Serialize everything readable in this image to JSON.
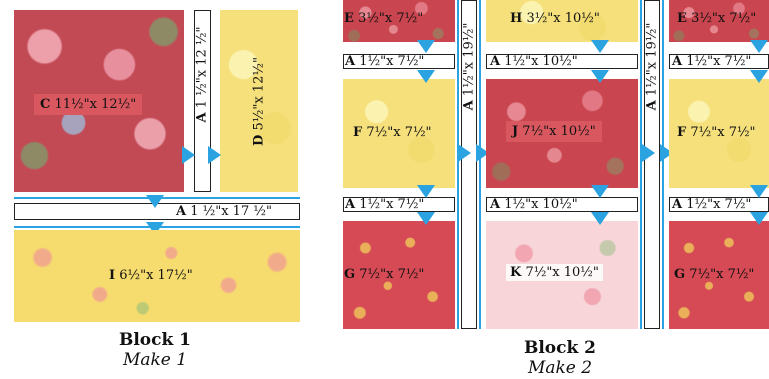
{
  "block1": {
    "title": "Block 1",
    "subtitle": "Make 1",
    "pieces": {
      "C": {
        "letter": "C",
        "size": "11½\"x 12½\""
      },
      "A_vertical": {
        "letter": "A",
        "size": "1 ½\"x 12 ½\""
      },
      "D": {
        "letter": "D",
        "size": "5½\"x 12½\""
      },
      "A_horizontal": {
        "letter": "A",
        "size": "1 ½\"x 17 ½\""
      },
      "I": {
        "letter": "I",
        "size": "6½\"x 17½\""
      }
    }
  },
  "block2": {
    "title": "Block 2",
    "subtitle": "Make 2",
    "pieces": {
      "E": {
        "letter": "E",
        "size": "3½\"x 7½\""
      },
      "A_small": {
        "letter": "A",
        "size": "1½\"x 7½\""
      },
      "F": {
        "letter": "F",
        "size": "7½\"x 7½\""
      },
      "G": {
        "letter": "G",
        "size": "7½\"x 7½\""
      },
      "H": {
        "letter": "H",
        "size": "3½\"x 10½\""
      },
      "A_medium": {
        "letter": "A",
        "size": "1½\"x 10½\""
      },
      "J": {
        "letter": "J",
        "size": "7½\"x 10½\""
      },
      "K": {
        "letter": "K",
        "size": "7½\"x 10½\""
      },
      "A_long": {
        "letter": "A",
        "size": "1½\"x 19½\""
      }
    }
  },
  "colors": {
    "arrow": "#2aa3e0",
    "red_fabric": "#c9454f",
    "yellow_fabric": "#f5e07c",
    "pink_fabric": "#f7d5d8"
  }
}
